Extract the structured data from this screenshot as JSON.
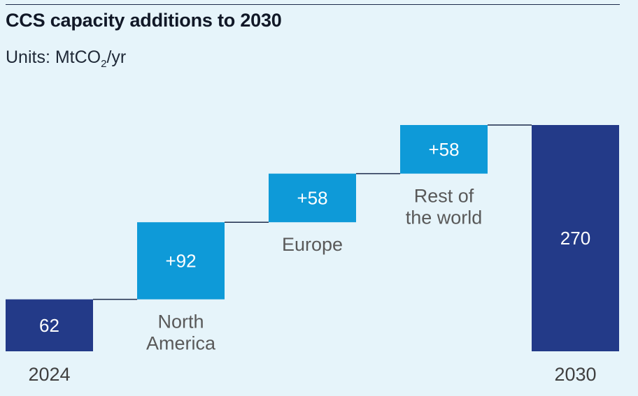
{
  "header": {
    "title": "CCS capacity additions to 2030",
    "units_prefix": "Units: MtCO",
    "units_sub": "2",
    "units_suffix": "/yr"
  },
  "chart_data": {
    "type": "bar",
    "subtype": "waterfall",
    "title": "CCS capacity additions to 2030",
    "ylabel": "MtCO2/yr",
    "categories": [
      "2024",
      "North America",
      "Europe",
      "Rest of the world",
      "2030"
    ],
    "steps": [
      {
        "category": "2024",
        "kind": "total",
        "value": 62,
        "label": "62",
        "cat_lines": [],
        "axis_label": "2024"
      },
      {
        "category": "North America",
        "kind": "increase",
        "value": 92,
        "label": "+92",
        "cat_lines": [
          "North",
          "America"
        ],
        "axis_label": ""
      },
      {
        "category": "Europe",
        "kind": "increase",
        "value": 58,
        "label": "+58",
        "cat_lines": [
          "Europe"
        ],
        "axis_label": ""
      },
      {
        "category": "Rest of the world",
        "kind": "increase",
        "value": 58,
        "label": "+58",
        "cat_lines": [
          "Rest of",
          "the world"
        ],
        "axis_label": ""
      },
      {
        "category": "2030",
        "kind": "total",
        "value": 270,
        "label": "270",
        "cat_lines": [],
        "axis_label": "2030"
      }
    ],
    "colors": {
      "total": "#233a88",
      "increase": "#0e9ad8",
      "connector": "#1c2a4a"
    },
    "grid": false,
    "legend": "none"
  }
}
